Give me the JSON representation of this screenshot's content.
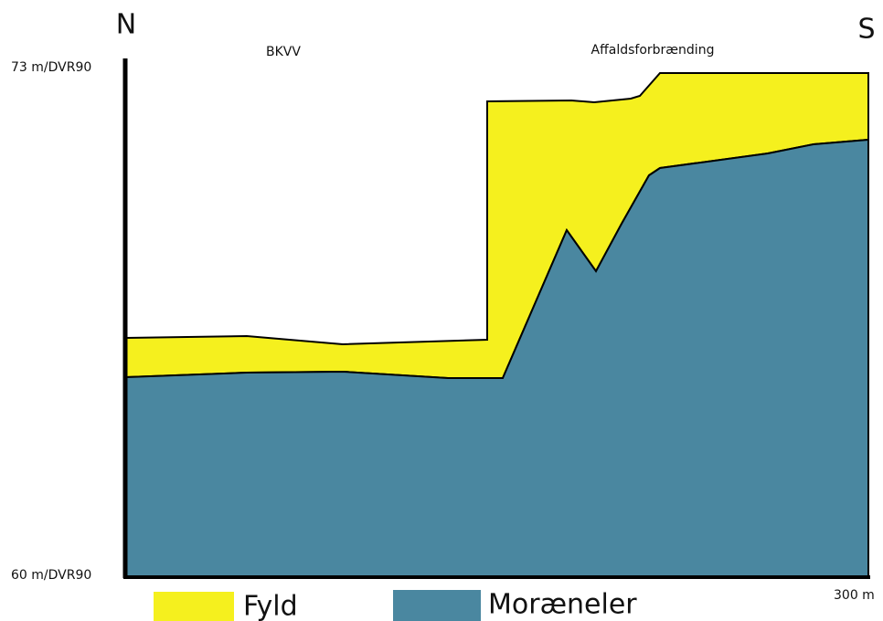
{
  "directions": {
    "north": "N",
    "south": "S"
  },
  "sites": {
    "left": "BKVV",
    "right": "Affaldsforbrænding"
  },
  "axis": {
    "top": "73 m/DVR90",
    "bottom": "60 m/DVR90",
    "length": "300 m"
  },
  "legend": [
    "Fyld",
    "Moræneler"
  ]
}
